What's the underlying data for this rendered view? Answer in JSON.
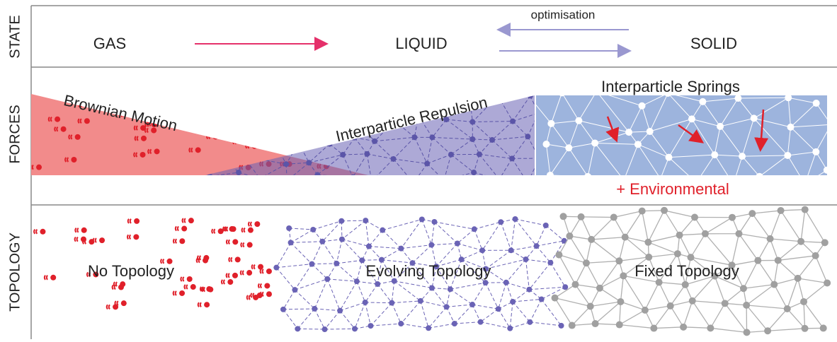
{
  "rows": {
    "state": {
      "label": "STATE",
      "items": [
        "GAS",
        "LIQUID",
        "SOLID"
      ],
      "arrow_label": "optimisation"
    },
    "forces": {
      "label": "FORCES",
      "items": [
        "Brownian Motion",
        "Interparticle Repulsion",
        "Interparticle Springs"
      ],
      "note": "+ Environmental"
    },
    "topology": {
      "label": "TOPOLOGY",
      "items": [
        "No Topology",
        "Evolving Topology",
        "Fixed Topology"
      ]
    }
  }
}
